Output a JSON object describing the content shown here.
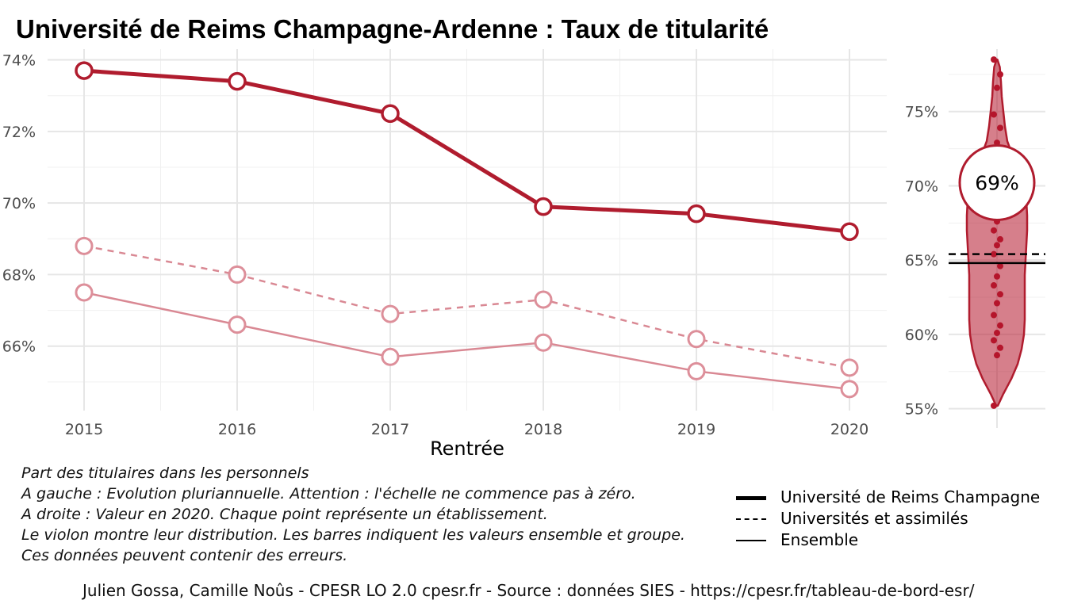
{
  "chart_data": [
    {
      "type": "line",
      "title": "Université de Reims Champagne-Ardenne  :  Taux de titularité",
      "xlabel": "Rentrée",
      "ylabel": "",
      "categories": [
        "2015",
        "2016",
        "2017",
        "2018",
        "2019",
        "2020"
      ],
      "ylim": [
        64.2,
        74.3
      ],
      "yticks": [
        66,
        68,
        70,
        72,
        74
      ],
      "ytick_labels": [
        "66%",
        "68%",
        "70%",
        "72%",
        "74%"
      ],
      "grid": true,
      "series": [
        {
          "name": "Université de Reims Champagne",
          "values": [
            73.7,
            73.4,
            72.5,
            69.9,
            69.7,
            69.2
          ]
        },
        {
          "name": "Universités et assimilés",
          "values": [
            68.8,
            68.0,
            66.9,
            67.3,
            66.2,
            65.4
          ]
        },
        {
          "name": "Ensemble",
          "values": [
            67.5,
            66.6,
            65.7,
            66.1,
            65.3,
            64.8
          ]
        }
      ]
    },
    {
      "type": "violin",
      "ylim": [
        54.5,
        79.2
      ],
      "yticks": [
        55,
        60,
        65,
        70,
        75
      ],
      "ytick_labels": [
        "55%",
        "60%",
        "65%",
        "70%",
        "75%"
      ],
      "highlight_value": 69.2,
      "highlight_label": "69%",
      "reference_lines": [
        {
          "name": "Universités et assimilés",
          "value": 65.4,
          "style": "dashed"
        },
        {
          "name": "Ensemble",
          "value": 64.8,
          "style": "solid"
        }
      ],
      "points": [
        78.5,
        77.5,
        76.6,
        74.8,
        73.9,
        72.9,
        72.1,
        70.9,
        70.2,
        69.6,
        68.8,
        67.6,
        67.0,
        66.4,
        66.0,
        65.4,
        64.6,
        63.9,
        63.3,
        62.7,
        62.1,
        61.3,
        60.6,
        60.1,
        59.6,
        59.1,
        58.6,
        55.2
      ]
    }
  ],
  "point_color": "#b5152b",
  "accent_color": "#b01c2e",
  "caption_lines": [
    "Part des titulaires dans les personnels",
    "A gauche : Evolution pluriannuelle. Attention : l'échelle ne commence pas à zéro.",
    "A droite : Valeur en 2020. Chaque point représente un établissement.",
    "Le violon montre leur distribution. Les barres indiquent les valeurs ensemble et groupe.",
    "Ces données peuvent contenir des erreurs."
  ],
  "legend": [
    {
      "label": "Université de Reims Champagne",
      "style": "solid-thick"
    },
    {
      "label": "Universités et assimilés",
      "style": "dashed"
    },
    {
      "label": "Ensemble",
      "style": "solid-thin"
    }
  ],
  "footer": "Julien Gossa, Camille Noûs - CPESR LO 2.0 cpesr.fr - Source : données SIES - https://cpesr.fr/tableau-de-bord-esr/"
}
